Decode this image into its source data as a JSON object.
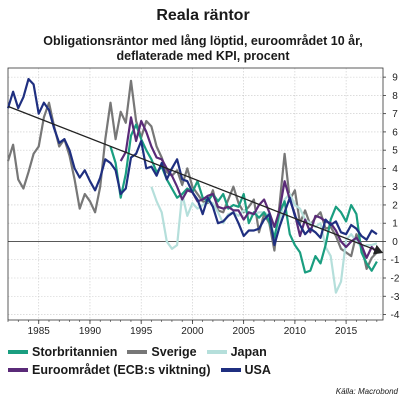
{
  "title": "Reala räntor",
  "subtitle": "Obligationsräntor med lång löptid, euroområdet 10 år, deflaterade med KPI, procent",
  "source": "Källa: Macrobond",
  "chart_data": {
    "type": "line",
    "xlim": [
      1982,
      2018.6
    ],
    "ylim": [
      -4.3,
      9.5
    ],
    "xticks": [
      1985,
      1990,
      1995,
      2000,
      2005,
      2010,
      2015
    ],
    "yticks": [
      -4,
      -3,
      -2,
      -1,
      0,
      1,
      2,
      3,
      4,
      5,
      6,
      7,
      8,
      9
    ],
    "grid": true,
    "series": [
      {
        "name": "Storbritannien",
        "color": "#1a9e80",
        "x": [
          1992.0,
          1992.5,
          1993.0,
          1993.5,
          1994.0,
          1994.5,
          1995.0,
          1995.5,
          1996.0,
          1996.5,
          1997.0,
          1997.5,
          1998.0,
          1998.5,
          1999.0,
          1999.5,
          2000.0,
          2000.5,
          2001.0,
          2001.5,
          2002.0,
          2002.5,
          2003.0,
          2003.5,
          2004.0,
          2004.5,
          2005.0,
          2005.5,
          2006.0,
          2006.5,
          2007.0,
          2007.5,
          2008.0,
          2008.5,
          2009.0,
          2009.5,
          2010.0,
          2010.5,
          2011.0,
          2011.5,
          2012.0,
          2012.5,
          2013.0,
          2013.5,
          2014.0,
          2014.5,
          2015.0,
          2015.5,
          2016.0,
          2016.5,
          2017.0,
          2017.5,
          2018.0
        ],
        "values": [
          5.2,
          4.3,
          2.4,
          3.7,
          5.8,
          6.4,
          5.6,
          5.0,
          4.5,
          3.8,
          4.1,
          3.4,
          2.9,
          2.4,
          2.6,
          2.9,
          2.7,
          3.3,
          2.4,
          2.2,
          2.6,
          2.2,
          2.6,
          1.8,
          2.0,
          1.9,
          2.6,
          1.0,
          1.6,
          1.3,
          1.6,
          1.1,
          0.2,
          1.6,
          2.2,
          0.4,
          -0.2,
          -0.6,
          -1.7,
          -1.6,
          -0.8,
          -1.2,
          -0.2,
          1.2,
          1.9,
          1.6,
          1.1,
          2.0,
          1.5,
          -0.6,
          -1.2,
          -1.6,
          -1.1
        ]
      },
      {
        "name": "Sverige",
        "color": "#777777",
        "x": [
          1982.0,
          1982.5,
          1983.0,
          1983.5,
          1984.0,
          1984.5,
          1985.0,
          1985.5,
          1986.0,
          1986.5,
          1987.0,
          1987.5,
          1988.0,
          1988.5,
          1989.0,
          1989.5,
          1990.0,
          1990.5,
          1991.0,
          1991.5,
          1992.0,
          1992.5,
          1993.0,
          1993.5,
          1994.0,
          1994.5,
          1995.0,
          1995.5,
          1996.0,
          1996.5,
          1997.0,
          1997.5,
          1998.0,
          1998.5,
          1999.0,
          1999.5,
          2000.0,
          2000.5,
          2001.0,
          2001.5,
          2002.0,
          2002.5,
          2003.0,
          2003.5,
          2004.0,
          2004.5,
          2005.0,
          2005.5,
          2006.0,
          2006.5,
          2007.0,
          2007.5,
          2008.0,
          2008.5,
          2009.0,
          2009.5,
          2010.0,
          2010.5,
          2011.0,
          2011.5,
          2012.0,
          2012.5,
          2013.0,
          2013.5,
          2014.0,
          2014.5,
          2015.0,
          2015.5,
          2016.0,
          2016.5,
          2017.0,
          2017.5,
          2018.0
        ],
        "values": [
          4.4,
          5.3,
          3.4,
          2.9,
          3.8,
          4.8,
          5.2,
          6.8,
          7.6,
          6.3,
          5.2,
          5.6,
          4.7,
          3.4,
          1.8,
          2.6,
          2.2,
          1.6,
          3.0,
          5.6,
          7.6,
          5.6,
          7.1,
          6.5,
          8.8,
          6.6,
          5.7,
          6.6,
          6.3,
          5.2,
          4.6,
          3.8,
          3.6,
          3.9,
          3.1,
          4.0,
          3.0,
          2.6,
          2.2,
          2.1,
          2.8,
          1.7,
          1.6,
          2.3,
          3.0,
          2.1,
          1.6,
          1.9,
          2.3,
          0.5,
          1.5,
          1.0,
          -0.5,
          2.0,
          4.8,
          2.3,
          2.8,
          1.0,
          1.7,
          0.9,
          1.3,
          1.6,
          0.7,
          0.8,
          0.3,
          -0.4,
          -0.6,
          -0.8,
          0.4,
          -0.2,
          -1.5,
          -0.9,
          -0.6
        ]
      },
      {
        "name": "Japan",
        "color": "#b5dfdb",
        "x": [
          1996.0,
          1996.5,
          1997.0,
          1997.5,
          1998.0,
          1998.5,
          1999.0,
          1999.5,
          2000.0,
          2000.5,
          2001.0,
          2001.5,
          2002.0,
          2002.5,
          2003.0,
          2003.5,
          2004.0,
          2004.5,
          2005.0,
          2005.5,
          2006.0,
          2006.5,
          2007.0,
          2007.5,
          2008.0,
          2008.5,
          2009.0,
          2009.5,
          2010.0,
          2010.5,
          2011.0,
          2011.5,
          2012.0,
          2012.5,
          2013.0,
          2013.5,
          2014.0,
          2014.5,
          2015.0,
          2015.5,
          2016.0,
          2016.5,
          2017.0,
          2017.5,
          2018.0
        ],
        "values": [
          3.0,
          2.2,
          1.6,
          0.0,
          -0.4,
          -0.2,
          2.6,
          1.4,
          2.1,
          1.8,
          2.0,
          2.2,
          2.1,
          1.6,
          1.0,
          1.5,
          1.6,
          1.4,
          1.7,
          1.5,
          1.5,
          1.6,
          1.6,
          1.4,
          0.2,
          1.1,
          2.3,
          2.6,
          2.0,
          1.8,
          1.2,
          1.0,
          0.8,
          1.0,
          -0.3,
          -0.8,
          -2.8,
          -2.2,
          0.1,
          0.4,
          0.0,
          -0.3,
          -0.2,
          -0.2,
          -0.1
        ]
      },
      {
        "name": "Euroområdet (ECB:s viktning)",
        "color": "#5a2a78",
        "x": [
          1993.0,
          1993.5,
          1994.0,
          1994.5,
          1995.0,
          1995.5,
          1996.0,
          1996.5,
          1997.0,
          1997.5,
          1998.0,
          1998.5,
          1999.0,
          1999.5,
          2000.0,
          2000.5,
          2001.0,
          2001.5,
          2002.0,
          2002.5,
          2003.0,
          2003.5,
          2004.0,
          2004.5,
          2005.0,
          2005.5,
          2006.0,
          2006.5,
          2007.0,
          2007.5,
          2008.0,
          2008.5,
          2009.0,
          2009.5,
          2010.0,
          2010.5,
          2011.0,
          2011.5,
          2012.0,
          2012.5,
          2013.0,
          2013.5,
          2014.0,
          2014.5,
          2015.0,
          2015.5,
          2016.0,
          2016.5,
          2017.0,
          2017.5,
          2018.0
        ],
        "values": [
          4.4,
          4.9,
          6.8,
          5.5,
          6.6,
          6.0,
          5.2,
          4.6,
          4.5,
          4.0,
          3.6,
          3.0,
          2.3,
          2.8,
          2.7,
          2.2,
          2.3,
          2.5,
          2.6,
          1.9,
          1.8,
          1.9,
          1.7,
          1.7,
          1.2,
          1.6,
          1.5,
          2.0,
          2.3,
          1.6,
          0.8,
          1.7,
          3.3,
          2.3,
          1.5,
          0.3,
          1.2,
          0.5,
          1.4,
          1.3,
          1.1,
          1.0,
          0.6,
          0.0,
          -0.3,
          0.0,
          0.2,
          -0.2,
          -0.9,
          -0.3,
          -0.6
        ]
      },
      {
        "name": "USA",
        "color": "#1f2f80",
        "x": [
          1982.0,
          1982.5,
          1983.0,
          1983.5,
          1984.0,
          1984.5,
          1985.0,
          1985.5,
          1986.0,
          1986.5,
          1987.0,
          1987.5,
          1988.0,
          1988.5,
          1989.0,
          1989.5,
          1990.0,
          1990.5,
          1991.0,
          1991.5,
          1992.0,
          1992.5,
          1993.0,
          1993.5,
          1994.0,
          1994.5,
          1995.0,
          1995.5,
          1996.0,
          1996.5,
          1997.0,
          1997.5,
          1998.0,
          1998.5,
          1999.0,
          1999.5,
          2000.0,
          2000.5,
          2001.0,
          2001.5,
          2002.0,
          2002.5,
          2003.0,
          2003.5,
          2004.0,
          2004.5,
          2005.0,
          2005.5,
          2006.0,
          2006.5,
          2007.0,
          2007.5,
          2008.0,
          2008.5,
          2009.0,
          2009.5,
          2010.0,
          2010.5,
          2011.0,
          2011.5,
          2012.0,
          2012.5,
          2013.0,
          2013.5,
          2014.0,
          2014.5,
          2015.0,
          2015.5,
          2016.0,
          2016.5,
          2017.0,
          2017.5,
          2018.0
        ],
        "values": [
          7.3,
          8.2,
          7.3,
          7.9,
          8.9,
          8.6,
          7.0,
          7.6,
          7.2,
          6.2,
          5.4,
          5.6,
          5.0,
          4.0,
          3.5,
          3.9,
          3.3,
          2.8,
          3.5,
          4.5,
          4.3,
          3.9,
          2.6,
          2.9,
          4.6,
          4.8,
          5.5,
          4.0,
          4.1,
          3.6,
          4.3,
          3.4,
          4.0,
          4.5,
          3.4,
          3.3,
          2.7,
          2.3,
          1.5,
          2.4,
          1.9,
          1.0,
          1.1,
          1.4,
          1.6,
          1.0,
          0.3,
          0.6,
          0.6,
          0.7,
          1.2,
          1.5,
          -0.2,
          0.8,
          1.6,
          2.4,
          1.4,
          0.9,
          0.4,
          0.7,
          0.5,
          0.2,
          1.2,
          0.9,
          1.1,
          0.5,
          0.4,
          0.9,
          0.7,
          0.3,
          0.1,
          0.6,
          0.4
        ]
      }
    ],
    "trendline": {
      "x": [
        1982.0,
        2018.5
      ],
      "values": [
        7.4,
        -0.6
      ]
    },
    "legend": {
      "position": "bottom",
      "rows": [
        [
          "Storbritannien",
          "Sverige",
          "Japan"
        ],
        [
          "Euroområdet (ECB:s viktning)",
          "USA"
        ]
      ]
    }
  }
}
